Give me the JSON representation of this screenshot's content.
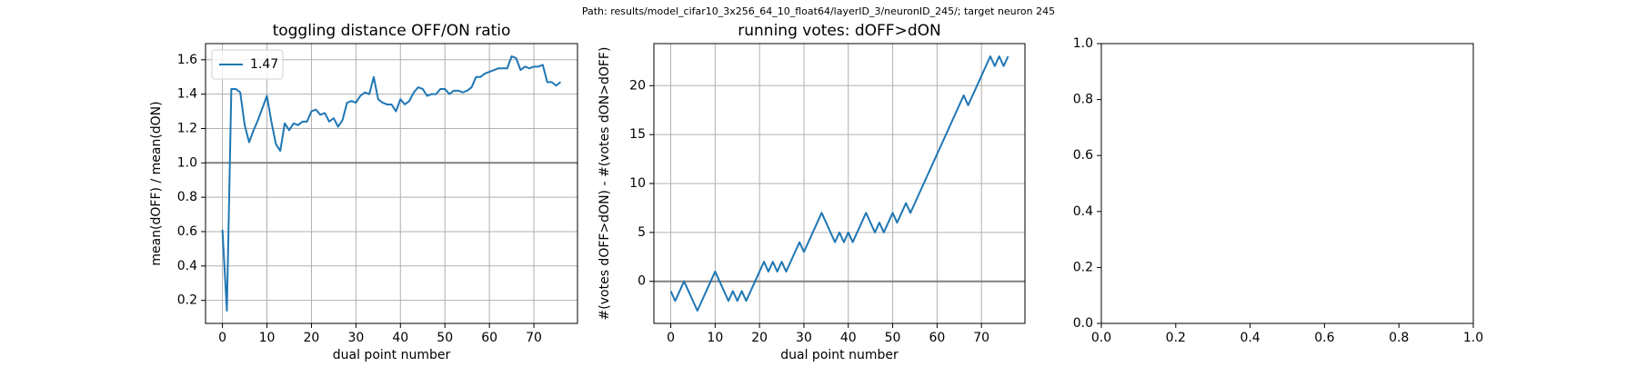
{
  "title": "Path: results/model_cifar10_3x256_64_10_float64/layerID_3/neuronID_245/; target neuron 245",
  "chart_data": [
    {
      "type": "line",
      "title": "toggling distance OFF/ON ratio",
      "xlabel": "dual point number",
      "ylabel": "mean(dOFF) / mean(dON)",
      "x": [
        0,
        1,
        2,
        3,
        4,
        5,
        6,
        7,
        8,
        9,
        10,
        11,
        12,
        13,
        14,
        15,
        16,
        17,
        18,
        19,
        20,
        21,
        22,
        23,
        24,
        25,
        26,
        27,
        28,
        29,
        30,
        31,
        32,
        33,
        34,
        35,
        36,
        37,
        38,
        39,
        40,
        41,
        42,
        43,
        44,
        45,
        46,
        47,
        48,
        49,
        50,
        51,
        52,
        53,
        54,
        55,
        56,
        57,
        58,
        59,
        60,
        61,
        62,
        63,
        64,
        65,
        66,
        67,
        68,
        69,
        70,
        71,
        72,
        73,
        74,
        75,
        76
      ],
      "series": [
        {
          "name": "1.47",
          "color": "#1f77b4",
          "values": [
            0.61,
            0.14,
            1.43,
            1.43,
            1.41,
            1.22,
            1.12,
            1.19,
            1.25,
            1.32,
            1.39,
            1.24,
            1.11,
            1.07,
            1.23,
            1.19,
            1.23,
            1.22,
            1.24,
            1.24,
            1.3,
            1.31,
            1.28,
            1.29,
            1.24,
            1.26,
            1.21,
            1.25,
            1.35,
            1.36,
            1.35,
            1.39,
            1.41,
            1.4,
            1.5,
            1.37,
            1.35,
            1.34,
            1.34,
            1.3,
            1.37,
            1.34,
            1.36,
            1.41,
            1.44,
            1.43,
            1.39,
            1.4,
            1.4,
            1.43,
            1.43,
            1.4,
            1.42,
            1.42,
            1.41,
            1.42,
            1.44,
            1.5,
            1.5,
            1.52,
            1.53,
            1.54,
            1.55,
            1.55,
            1.55,
            1.62,
            1.61,
            1.54,
            1.56,
            1.55,
            1.56,
            1.56,
            1.57,
            1.47,
            1.47,
            1.45,
            1.47
          ]
        }
      ],
      "hline": 1,
      "hline_color": "#808080",
      "xlim": [
        -3.8,
        79.8
      ],
      "xticks": [
        0,
        10,
        20,
        30,
        40,
        50,
        60,
        70
      ],
      "ylim": [
        0.066,
        1.694
      ],
      "yticks": [
        0.2,
        0.4,
        0.6,
        0.8,
        {
          "value": 1,
          "label": "1.0"
        },
        1.2,
        1.4,
        1.6
      ],
      "grid": true,
      "legend": "upper left"
    },
    {
      "type": "line",
      "title": "running votes: dOFF>dON",
      "xlabel": "dual point number",
      "ylabel": "#(votes dOFF>dON) - #(votes dON>dOFF)",
      "x": [
        0,
        1,
        2,
        3,
        4,
        5,
        6,
        7,
        8,
        9,
        10,
        11,
        12,
        13,
        14,
        15,
        16,
        17,
        18,
        19,
        20,
        21,
        22,
        23,
        24,
        25,
        26,
        27,
        28,
        29,
        30,
        31,
        32,
        33,
        34,
        35,
        36,
        37,
        38,
        39,
        40,
        41,
        42,
        43,
        44,
        45,
        46,
        47,
        48,
        49,
        50,
        51,
        52,
        53,
        54,
        55,
        56,
        57,
        58,
        59,
        60,
        61,
        62,
        63,
        64,
        65,
        66,
        67,
        68,
        69,
        70,
        71,
        72,
        73,
        74,
        75,
        76
      ],
      "series": [
        {
          "color": "#1f77b4",
          "values": [
            -1,
            -2,
            -1,
            0,
            -1,
            -2,
            -3,
            -2,
            -1,
            0,
            1,
            0,
            -1,
            -2,
            -1,
            -2,
            -1,
            -2,
            -1,
            0,
            1,
            2,
            1,
            2,
            1,
            2,
            1,
            2,
            3,
            4,
            3,
            4,
            5,
            6,
            7,
            6,
            5,
            4,
            5,
            4,
            5,
            4,
            5,
            6,
            7,
            6,
            5,
            6,
            5,
            6,
            7,
            6,
            7,
            8,
            7,
            8,
            9,
            10,
            11,
            12,
            13,
            14,
            15,
            16,
            17,
            18,
            19,
            18,
            19,
            20,
            21,
            22,
            23,
            22,
            23,
            22,
            23
          ]
        }
      ],
      "hline": 0,
      "hline_color": "#808080",
      "xlim": [
        -3.8,
        79.8
      ],
      "xticks": [
        0,
        10,
        20,
        30,
        40,
        50,
        60,
        70
      ],
      "ylim": [
        -4.3,
        24.3
      ],
      "yticks": [
        0,
        5,
        10,
        15,
        20
      ],
      "grid": true
    },
    {
      "type": "empty",
      "xlim": [
        0,
        1
      ],
      "xticks": [
        {
          "value": 0,
          "label": "0.0"
        },
        0.2,
        0.4,
        0.6,
        0.8,
        {
          "value": 1,
          "label": "1.0"
        }
      ],
      "ylim": [
        0,
        1
      ],
      "yticks": [
        {
          "value": 0,
          "label": "0.0"
        },
        0.2,
        0.4,
        0.6,
        0.8,
        {
          "value": 1,
          "label": "1.0"
        }
      ],
      "grid": false
    }
  ]
}
